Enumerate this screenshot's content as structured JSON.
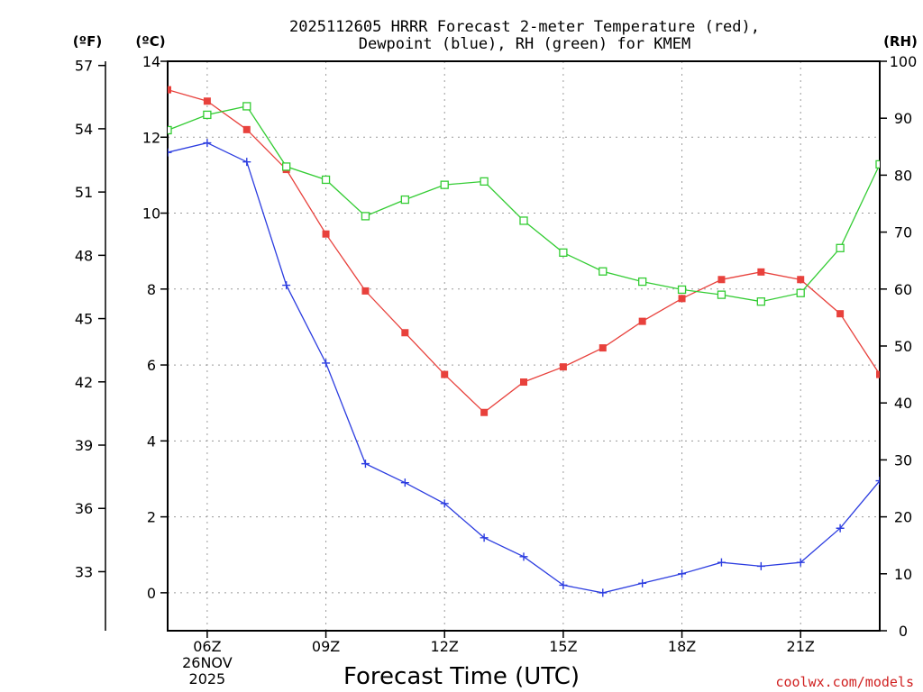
{
  "chart_data": {
    "type": "line",
    "title_lines": [
      "2025112605 HRRR Forecast 2-meter Temperature (red),",
      "Dewpoint (blue), RH (green) for KMEM"
    ],
    "xlabel": "Forecast Time (UTC)",
    "credit": "coolwx.com/models",
    "x_hours": [
      5,
      6,
      7,
      8,
      9,
      10,
      11,
      12,
      13,
      14,
      15,
      16,
      17,
      18,
      19,
      20,
      21,
      22,
      23
    ],
    "xlim": [
      5,
      23
    ],
    "x_ticks": [
      {
        "hour": 6,
        "label": "06Z",
        "sub": [
          "26NOV",
          "2025"
        ]
      },
      {
        "hour": 9,
        "label": "09Z",
        "sub": []
      },
      {
        "hour": 12,
        "label": "12Z",
        "sub": []
      },
      {
        "hour": 15,
        "label": "15Z",
        "sub": []
      },
      {
        "hour": 18,
        "label": "18Z",
        "sub": []
      },
      {
        "hour": 21,
        "label": "21Z",
        "sub": []
      }
    ],
    "axes": {
      "celsius": {
        "unit_label": "(ºC)",
        "ylim": [
          -1,
          14
        ],
        "ticks": [
          "0",
          "2",
          "4",
          "6",
          "8",
          "10",
          "12",
          "14"
        ]
      },
      "fahrenheit": {
        "unit_label": "(ºF)",
        "ticks": [
          "33",
          "36",
          "39",
          "42",
          "45",
          "48",
          "51",
          "54",
          "57"
        ]
      },
      "rh": {
        "unit_label": "(RH)",
        "ylim": [
          0,
          100
        ],
        "ticks": [
          "0",
          "10",
          "20",
          "30",
          "40",
          "50",
          "60",
          "70",
          "80",
          "90",
          "100"
        ]
      }
    },
    "series": [
      {
        "name": "2-meter Temperature",
        "color": "#e8413c",
        "marker": "square-filled",
        "axis": "celsius",
        "values": [
          13.25,
          12.95,
          12.2,
          11.15,
          9.45,
          7.95,
          6.85,
          5.75,
          4.75,
          5.55,
          5.95,
          6.45,
          7.15,
          7.75,
          8.25,
          8.45,
          8.25,
          7.35,
          5.75
        ]
      },
      {
        "name": "Dewpoint",
        "color": "#2c3de0",
        "marker": "plus",
        "axis": "celsius",
        "values": [
          11.6,
          11.85,
          11.35,
          8.1,
          6.05,
          3.4,
          2.9,
          2.35,
          1.45,
          0.95,
          0.2,
          0.0,
          0.25,
          0.5,
          0.8,
          0.7,
          0.8,
          1.7,
          2.95
        ]
      },
      {
        "name": "RH",
        "color": "#33cc33",
        "marker": "square-open",
        "axis": "rh",
        "values": [
          87.9,
          90.6,
          92.1,
          81.5,
          79.2,
          72.8,
          75.7,
          78.3,
          78.9,
          72.0,
          66.4,
          63.1,
          61.3,
          59.9,
          59.0,
          57.8,
          59.3,
          67.2,
          81.9
        ]
      }
    ]
  }
}
